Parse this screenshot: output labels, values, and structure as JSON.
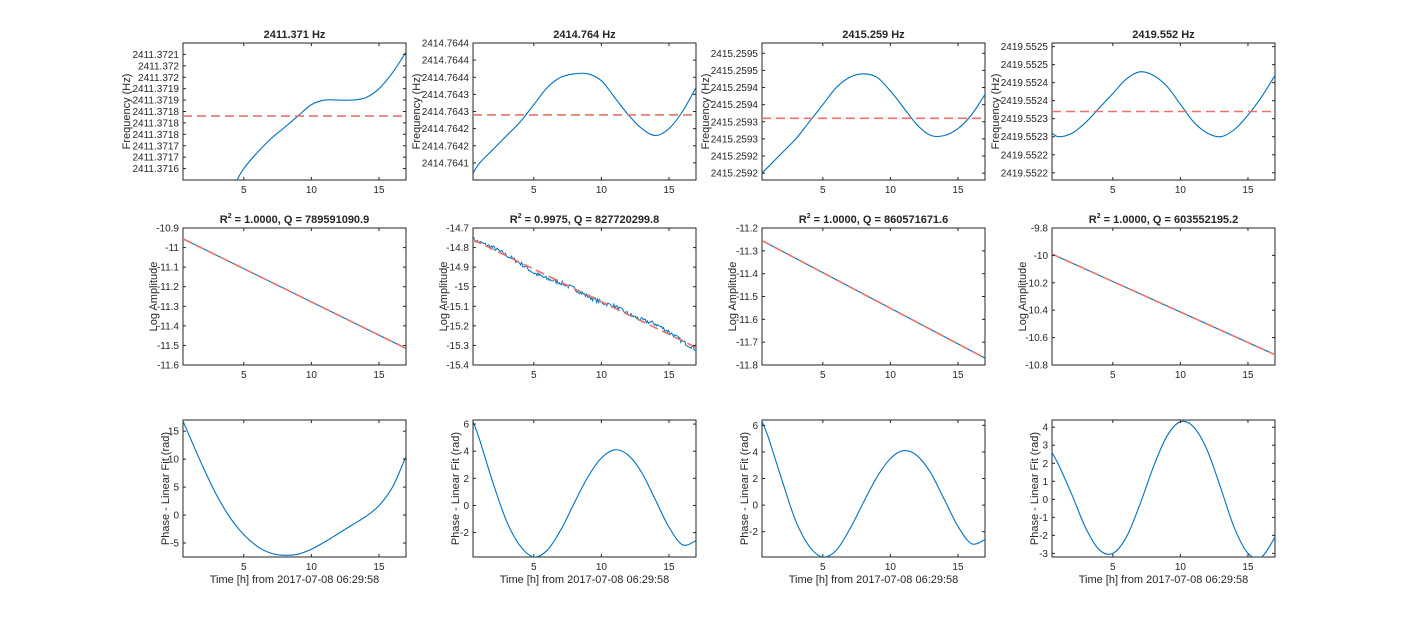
{
  "figure": {
    "colors": {
      "data": "#0072bd",
      "fit": "#e8736d",
      "axes": "#262626"
    }
  },
  "chart_data": [
    {
      "type": "line",
      "row": 0,
      "col": 0,
      "title": "2411.371 Hz",
      "title_r2": "",
      "title_rest": "",
      "xlabel": "",
      "ylabel": "Frequency (Hz)",
      "xlim": [
        0.5,
        17
      ],
      "ylim": [
        2411.37155,
        2411.37215
      ],
      "xticks": [
        5,
        10,
        15
      ],
      "xticklabels": [
        "5",
        "10",
        "15"
      ],
      "yticks": [
        2411.3716,
        2411.37165,
        2411.3717,
        2411.37175,
        2411.3718,
        2411.37185,
        2411.3719,
        2411.37195,
        2411.372,
        2411.37205,
        2411.3721
      ],
      "yticklabels": [
        "2411.3716",
        "2411.3717",
        "2411.3717",
        "2411.3718",
        "2411.3718",
        "2411.3718",
        "2411.3719",
        "2411.3719",
        "2411.372",
        "2411.372",
        "2411.3721"
      ],
      "series": [
        {
          "role": "data",
          "x": [
            4.5,
            5,
            6,
            7,
            8,
            9,
            10,
            11,
            12,
            13,
            14,
            15,
            16,
            17
          ],
          "y": [
            2411.37155,
            2411.3716,
            2411.37167,
            2411.37173,
            2411.37178,
            2411.37183,
            2411.37188,
            2411.3719,
            2411.3719,
            2411.3719,
            2411.37191,
            2411.37195,
            2411.37202,
            2411.37211
          ]
        },
        {
          "role": "fit",
          "style": "dashed",
          "x": [
            0.5,
            17
          ],
          "y": [
            2411.37183,
            2411.37183
          ]
        }
      ]
    },
    {
      "type": "line",
      "row": 0,
      "col": 1,
      "title": "2414.764 Hz",
      "title_r2": "",
      "title_rest": "",
      "xlabel": "",
      "ylabel": "Frequency (Hz)",
      "xlim": [
        0.5,
        17
      ],
      "ylim": [
        2414.76405,
        2414.76445
      ],
      "xticks": [
        5,
        10,
        15
      ],
      "xticklabels": [
        "5",
        "10",
        "15"
      ],
      "yticks": [
        2414.7641,
        2414.76415,
        2414.7642,
        2414.76425,
        2414.7643,
        2414.76435,
        2414.7644,
        2414.76445
      ],
      "yticklabels": [
        "2414.7641",
        "2414.7642",
        "2414.7642",
        "2414.7643",
        "2414.7643",
        "2414.7644",
        "2414.7644",
        "2414.7644"
      ],
      "series": [
        {
          "role": "data",
          "x": [
            0.5,
            1,
            2,
            3,
            4,
            5,
            6,
            7,
            8,
            9,
            10,
            11,
            12,
            13,
            14,
            15,
            16,
            17
          ],
          "y": [
            2414.76407,
            2414.7641,
            2414.76414,
            2414.76418,
            2414.76422,
            2414.76427,
            2414.76432,
            2414.76435,
            2414.76436,
            2414.76436,
            2414.76434,
            2414.76429,
            2414.76424,
            2414.7642,
            2414.76418,
            2414.7642,
            2414.76425,
            2414.76432
          ]
        },
        {
          "role": "fit",
          "style": "dashed",
          "x": [
            0.5,
            17
          ],
          "y": [
            2414.76424,
            2414.76424
          ]
        }
      ]
    },
    {
      "type": "line",
      "row": 0,
      "col": 2,
      "title": "2415.259 Hz",
      "title_r2": "",
      "title_rest": "",
      "xlabel": "",
      "ylabel": "Frequency (Hz)",
      "xlim": [
        0.5,
        17
      ],
      "ylim": [
        2415.25918,
        2415.25958
      ],
      "xticks": [
        5,
        10,
        15
      ],
      "xticklabels": [
        "5",
        "10",
        "15"
      ],
      "yticks": [
        2415.2592,
        2415.25925,
        2415.2593,
        2415.25935,
        2415.2594,
        2415.25945,
        2415.2595,
        2415.25955
      ],
      "yticklabels": [
        "2415.2592",
        "2415.2592",
        "2415.2593",
        "2415.2593",
        "2415.2594",
        "2415.2594",
        "2415.2595",
        "2415.2595"
      ],
      "series": [
        {
          "role": "data",
          "x": [
            0.5,
            1,
            2,
            3,
            4,
            5,
            6,
            7,
            8,
            9,
            10,
            11,
            12,
            13,
            14,
            15,
            16,
            17
          ],
          "y": [
            2415.2592,
            2415.25922,
            2415.25926,
            2415.2593,
            2415.25935,
            2415.2594,
            2415.25945,
            2415.25948,
            2415.25949,
            2415.25948,
            2415.25944,
            2415.25939,
            2415.25934,
            2415.25931,
            2415.25931,
            2415.25933,
            2415.25937,
            2415.25943
          ]
        },
        {
          "role": "fit",
          "style": "dashed",
          "x": [
            0.5,
            17
          ],
          "y": [
            2415.25936,
            2415.25936
          ]
        }
      ]
    },
    {
      "type": "line",
      "row": 0,
      "col": 3,
      "title": "2419.552 Hz",
      "title_r2": "",
      "title_rest": "",
      "xlabel": "",
      "ylabel": "Frequency (Hz)",
      "xlim": [
        0.5,
        17
      ],
      "ylim": [
        2419.55218,
        2419.55256
      ],
      "xticks": [
        5,
        10,
        15
      ],
      "xticklabels": [
        "5",
        "10",
        "15"
      ],
      "yticks": [
        2419.5522,
        2419.55225,
        2419.5523,
        2419.55235,
        2419.5524,
        2419.55245,
        2419.5525,
        2419.55255
      ],
      "yticklabels": [
        "2419.5522",
        "2419.5522",
        "2419.5523",
        "2419.5523",
        "2419.5524",
        "2419.5524",
        "2419.5525",
        "2419.5525"
      ],
      "series": [
        {
          "role": "data",
          "x": [
            0.5,
            1,
            2,
            3,
            4,
            5,
            6,
            7,
            8,
            9,
            10,
            11,
            12,
            13,
            14,
            15,
            16,
            17
          ],
          "y": [
            2419.55231,
            2419.5523,
            2419.55231,
            2419.55234,
            2419.55238,
            2419.55242,
            2419.55246,
            2419.55248,
            2419.55247,
            2419.55244,
            2419.55239,
            2419.55234,
            2419.55231,
            2419.5523,
            2419.55232,
            2419.55236,
            2419.55241,
            2419.55247
          ]
        },
        {
          "role": "fit",
          "style": "dashed",
          "x": [
            0.5,
            17
          ],
          "y": [
            2419.55237,
            2419.55237
          ]
        }
      ]
    },
    {
      "type": "line",
      "row": 1,
      "col": 0,
      "title": "",
      "title_r2": "R",
      "title_rest": " = 1.0000, Q = 789591090.9",
      "xlabel": "",
      "ylabel": "Log Amplitude",
      "xlim": [
        0.5,
        17
      ],
      "ylim": [
        -11.6,
        -10.9
      ],
      "xticks": [
        5,
        10,
        15
      ],
      "xticklabels": [
        "5",
        "10",
        "15"
      ],
      "yticks": [
        -11.6,
        -11.5,
        -11.4,
        -11.3,
        -11.2,
        -11.1,
        -11.0,
        -10.9
      ],
      "yticklabels": [
        "-11.6",
        "-11.5",
        "-11.4",
        "-11.3",
        "-11.2",
        "-11.1",
        "-11",
        "-10.9"
      ],
      "series": [
        {
          "role": "data",
          "x": [
            0.5,
            17
          ],
          "y": [
            -10.955,
            -11.515
          ]
        },
        {
          "role": "fit",
          "style": "dashed",
          "x": [
            0.5,
            17
          ],
          "y": [
            -10.955,
            -11.515
          ]
        }
      ]
    },
    {
      "type": "line",
      "row": 1,
      "col": 1,
      "title": "",
      "title_r2": "R",
      "title_rest": " = 0.9975, Q = 827720299.8",
      "xlabel": "",
      "ylabel": "Log Amplitude",
      "xlim": [
        0.5,
        17
      ],
      "ylim": [
        -15.4,
        -14.7
      ],
      "xticks": [
        5,
        10,
        15
      ],
      "xticklabels": [
        "5",
        "10",
        "15"
      ],
      "yticks": [
        -15.4,
        -15.3,
        -15.2,
        -15.1,
        -15.0,
        -14.9,
        -14.8,
        -14.7
      ],
      "yticklabels": [
        "-15.4",
        "-15.3",
        "-15.2",
        "-15.1",
        "-15",
        "-14.9",
        "-14.8",
        "-14.7"
      ],
      "series": [
        {
          "role": "data",
          "noisy": true,
          "x": [
            0.5,
            2,
            3,
            4,
            5,
            6,
            7,
            8,
            9,
            10,
            11,
            12,
            13,
            14,
            15,
            16,
            17
          ],
          "y": [
            -14.76,
            -14.8,
            -14.84,
            -14.88,
            -14.93,
            -14.96,
            -14.98,
            -15.01,
            -15.05,
            -15.08,
            -15.1,
            -15.14,
            -15.17,
            -15.19,
            -15.23,
            -15.28,
            -15.32
          ]
        },
        {
          "role": "fit",
          "style": "dashed",
          "x": [
            0.5,
            17
          ],
          "y": [
            -14.76,
            -15.31
          ]
        }
      ]
    },
    {
      "type": "line",
      "row": 1,
      "col": 2,
      "title": "",
      "title_r2": "R",
      "title_rest": " = 1.0000, Q = 860571671.6",
      "xlabel": "",
      "ylabel": "Log Amplitude",
      "xlim": [
        0.5,
        17
      ],
      "ylim": [
        -11.8,
        -11.2
      ],
      "xticks": [
        5,
        10,
        15
      ],
      "xticklabels": [
        "5",
        "10",
        "15"
      ],
      "yticks": [
        -11.8,
        -11.7,
        -11.6,
        -11.5,
        -11.4,
        -11.3,
        -11.2
      ],
      "yticklabels": [
        "-11.8",
        "-11.7",
        "-11.6",
        "-11.5",
        "-11.4",
        "-11.3",
        "-11.2"
      ],
      "series": [
        {
          "role": "data",
          "x": [
            0.5,
            17
          ],
          "y": [
            -11.255,
            -11.77
          ]
        },
        {
          "role": "fit",
          "style": "dashed",
          "x": [
            0.5,
            17
          ],
          "y": [
            -11.255,
            -11.77
          ]
        }
      ]
    },
    {
      "type": "line",
      "row": 1,
      "col": 3,
      "title": "",
      "title_r2": "R",
      "title_rest": " = 1.0000, Q = 603552195.2",
      "xlabel": "",
      "ylabel": "Log Amplitude",
      "xlim": [
        0.5,
        17
      ],
      "ylim": [
        -10.8,
        -9.8
      ],
      "xticks": [
        5,
        10,
        15
      ],
      "xticklabels": [
        "5",
        "10",
        "15"
      ],
      "yticks": [
        -10.8,
        -10.6,
        -10.4,
        -10.2,
        -10.0,
        -9.8
      ],
      "yticklabels": [
        "-10.8",
        "-10.6",
        "-10.4",
        "-10.2",
        "-10",
        "-9.8"
      ],
      "series": [
        {
          "role": "data",
          "x": [
            0.5,
            17
          ],
          "y": [
            -9.99,
            -10.725
          ]
        },
        {
          "role": "fit",
          "style": "dashed",
          "x": [
            0.5,
            17
          ],
          "y": [
            -9.99,
            -10.725
          ]
        }
      ]
    },
    {
      "type": "line",
      "row": 2,
      "col": 0,
      "title": "",
      "title_r2": "",
      "title_rest": "",
      "xlabel": "Time [h] from 2017-07-08 06:29:58",
      "ylabel": "Phase - Linear Fit (rad)",
      "xlim": [
        0.5,
        17
      ],
      "ylim": [
        -7.5,
        17
      ],
      "xticks": [
        5,
        10,
        15
      ],
      "xticklabels": [
        "5",
        "10",
        "15"
      ],
      "yticks": [
        -5,
        0,
        5,
        10,
        15
      ],
      "yticklabels": [
        "-5",
        "0",
        "5",
        "10",
        "15"
      ],
      "series": [
        {
          "role": "data",
          "x": [
            0.5,
            1,
            2,
            3,
            4,
            5,
            6,
            7,
            8,
            9,
            10,
            11,
            12,
            13,
            14,
            15,
            16,
            17
          ],
          "y": [
            16.8,
            14.0,
            8.5,
            3.5,
            -0.5,
            -3.5,
            -5.6,
            -6.8,
            -7.2,
            -7.0,
            -6.1,
            -4.8,
            -3.3,
            -1.8,
            -0.3,
            1.7,
            5.0,
            10.5
          ]
        }
      ]
    },
    {
      "type": "line",
      "row": 2,
      "col": 1,
      "title": "",
      "title_r2": "",
      "title_rest": "",
      "xlabel": "Time [h] from 2017-07-08 06:29:58",
      "ylabel": "Phase - Linear Fit (rad)",
      "xlim": [
        0.5,
        17
      ],
      "ylim": [
        -3.8,
        6.3
      ],
      "xticks": [
        5,
        10,
        15
      ],
      "xticklabels": [
        "5",
        "10",
        "15"
      ],
      "yticks": [
        -2,
        0,
        2,
        4,
        6
      ],
      "yticklabels": [
        "-2",
        "0",
        "2",
        "4",
        "6"
      ],
      "series": [
        {
          "role": "data",
          "x": [
            0.5,
            1,
            2,
            3,
            4,
            5,
            6,
            7,
            8,
            9,
            10,
            11,
            12,
            13,
            14,
            15,
            16,
            17
          ],
          "y": [
            6.2,
            4.8,
            1.6,
            -1.2,
            -3.0,
            -3.8,
            -3.3,
            -1.8,
            0.2,
            2.1,
            3.5,
            4.1,
            3.7,
            2.4,
            0.4,
            -1.6,
            -2.9,
            -2.6
          ]
        }
      ]
    },
    {
      "type": "line",
      "row": 2,
      "col": 2,
      "title": "",
      "title_r2": "",
      "title_rest": "",
      "xlabel": "Time [h] from 2017-07-08 06:29:58",
      "ylabel": "Phase - Linear Fit (rad)",
      "xlim": [
        0.5,
        17
      ],
      "ylim": [
        -3.9,
        6.4
      ],
      "xticks": [
        5,
        10,
        15
      ],
      "xticklabels": [
        "5",
        "10",
        "15"
      ],
      "yticks": [
        -2,
        0,
        2,
        4,
        6
      ],
      "yticklabels": [
        "-2",
        "0",
        "2",
        "4",
        "6"
      ],
      "series": [
        {
          "role": "data",
          "x": [
            0.5,
            1,
            2,
            3,
            4,
            5,
            6,
            7,
            8,
            9,
            10,
            11,
            12,
            13,
            14,
            15,
            16,
            17
          ],
          "y": [
            6.3,
            5.0,
            1.8,
            -1.2,
            -3.1,
            -3.9,
            -3.4,
            -1.8,
            0.2,
            2.1,
            3.5,
            4.1,
            3.7,
            2.4,
            0.4,
            -1.6,
            -2.9,
            -2.6
          ]
        }
      ]
    },
    {
      "type": "line",
      "row": 2,
      "col": 3,
      "title": "",
      "title_r2": "",
      "title_rest": "",
      "xlabel": "Time [h] from 2017-07-08 06:29:58",
      "ylabel": "Phase - Linear Fit (rad)",
      "xlim": [
        0.5,
        17
      ],
      "ylim": [
        -3.2,
        4.4
      ],
      "xticks": [
        5,
        10,
        15
      ],
      "xticklabels": [
        "5",
        "10",
        "15"
      ],
      "yticks": [
        -3,
        -2,
        -1,
        0,
        1,
        2,
        3,
        4
      ],
      "yticklabels": [
        "-3",
        "-2",
        "-1",
        "0",
        "1",
        "2",
        "3",
        "4"
      ],
      "series": [
        {
          "role": "data",
          "x": [
            0.5,
            1,
            2,
            3,
            4,
            5,
            6,
            7,
            8,
            9,
            10,
            11,
            12,
            13,
            14,
            15,
            16,
            17
          ],
          "y": [
            2.6,
            1.9,
            0.2,
            -1.6,
            -2.8,
            -3.0,
            -2.1,
            -0.3,
            1.8,
            3.5,
            4.3,
            4.0,
            2.7,
            0.6,
            -1.6,
            -3.0,
            -3.2,
            -2.1
          ]
        }
      ]
    }
  ]
}
